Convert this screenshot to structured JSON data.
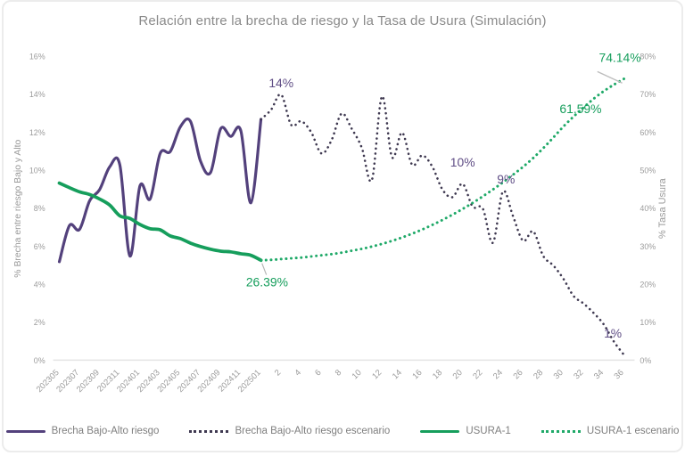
{
  "title": "Relación entre la brecha de riesgo y la Tasa de Usura (Simulación)",
  "chart_data": {
    "type": "line",
    "title": "Relación entre la brecha de riesgo y la Tasa de Usura (Simulación)",
    "left_axis": {
      "label": "% Brecha entre riesgo Bajo y Alto",
      "min": 0,
      "max": 16,
      "ticks": [
        "0%",
        "2%",
        "4%",
        "6%",
        "8%",
        "10%",
        "12%",
        "14%",
        "16%"
      ]
    },
    "right_axis": {
      "label": "% Tasa Usura",
      "min": 0,
      "max": 80,
      "ticks": [
        "0%",
        "10%",
        "20%",
        "30%",
        "40%",
        "50%",
        "60%",
        "70%",
        "80%"
      ]
    },
    "x_axis": {
      "historical_labels": [
        "202305",
        "202307",
        "202309",
        "202311",
        "202401",
        "202403",
        "202405",
        "202407",
        "202409",
        "202411",
        "202501"
      ],
      "scenario_labels": [
        "2",
        "4",
        "6",
        "8",
        "10",
        "12",
        "14",
        "16",
        "18",
        "20",
        "22",
        "24",
        "26",
        "28",
        "30",
        "32",
        "34",
        "36"
      ]
    },
    "series": [
      {
        "name": "Brecha Bajo-Alto riesgo",
        "axis": "left",
        "style": "solid",
        "color": "#53417c",
        "width": 3.2,
        "values": [
          5.2,
          7.1,
          6.9,
          8.4,
          9.0,
          10.2,
          10.3,
          5.5,
          9.2,
          8.5,
          10.9,
          11.0,
          12.3,
          12.6,
          10.5,
          9.9,
          12.2,
          11.8,
          12.1,
          8.3,
          12.7
        ]
      },
      {
        "name": "Brecha Bajo-Alto riesgo escenario",
        "axis": "left",
        "style": "dotted",
        "color": "#3e3850",
        "width": 2.6,
        "values": [
          13.2,
          14.0,
          12.4,
          12.6,
          12.0,
          10.9,
          11.6,
          13.0,
          12.2,
          11.2,
          9.5,
          13.9,
          10.7,
          12.0,
          10.3,
          10.8,
          10.2,
          9.0,
          8.6,
          9.3,
          8.1,
          8.0,
          6.2,
          8.9,
          7.6,
          6.3,
          6.8,
          5.5,
          5.0,
          4.3,
          3.4,
          3.0,
          2.5,
          1.9,
          1.0,
          0.3
        ]
      },
      {
        "name": "USURA-1",
        "axis": "right",
        "style": "solid",
        "color": "#169e5c",
        "width": 3.8,
        "values": [
          46.7,
          45.5,
          44.4,
          43.7,
          42.5,
          40.9,
          38.1,
          37.4,
          35.8,
          34.7,
          34.4,
          32.8,
          32.1,
          30.9,
          30.0,
          29.3,
          28.8,
          28.6,
          28.1,
          27.7,
          26.39
        ]
      },
      {
        "name": "USURA-1 escenario",
        "axis": "right",
        "style": "dotted",
        "color": "#1fa968",
        "width": 3.0,
        "values": [
          26.5,
          26.7,
          26.9,
          27.1,
          27.4,
          27.7,
          28.0,
          28.4,
          28.9,
          29.4,
          30.0,
          30.7,
          31.5,
          32.4,
          33.4,
          34.5,
          35.7,
          37.0,
          38.4,
          39.9,
          41.5,
          43.2,
          45.0,
          46.9,
          48.9,
          51.0,
          53.3,
          55.9,
          58.7,
          61.59,
          64.2,
          66.6,
          68.9,
          70.9,
          72.6,
          74.14
        ]
      }
    ],
    "annotations": [
      {
        "text": "14%",
        "axis": "left",
        "i": 22.0,
        "v": 14.0,
        "dy": -12,
        "color": "#5f4d85",
        "size": 14
      },
      {
        "text": "10%",
        "axis": "left",
        "i": 40.0,
        "v": 10.4,
        "dy": 0,
        "color": "#5f4d85",
        "size": 14
      },
      {
        "text": "9%",
        "axis": "left",
        "i": 44.3,
        "v": 9.5,
        "dy": 0,
        "color": "#5f4d85",
        "size": 14
      },
      {
        "text": "1%",
        "axis": "left",
        "i": 54.9,
        "v": 1.4,
        "dy": 0,
        "color": "#5f4d85",
        "size": 14
      },
      {
        "text": "26.39%",
        "axis": "right",
        "i": 20.6,
        "v": 20.5,
        "dy": 0,
        "color": "#169e5c",
        "size": 14
      },
      {
        "text": "61.59%",
        "axis": "right",
        "i": 51.7,
        "v": 66.0,
        "dy": 0,
        "color": "#169e5c",
        "size": 14
      },
      {
        "text": "74.14%",
        "axis": "right",
        "i": 55.6,
        "v": 79.5,
        "dy": 0,
        "color": "#169e5c",
        "size": 14
      }
    ]
  },
  "legend": {
    "items": [
      {
        "label": "Brecha Bajo-Alto riesgo",
        "style": "solid",
        "color": "#53417c"
      },
      {
        "label": "Brecha Bajo-Alto riesgo escenario",
        "style": "dotted",
        "color": "#3e3850"
      },
      {
        "label": "USURA-1",
        "style": "solid",
        "color": "#169e5c"
      },
      {
        "label": "USURA-1 escenario",
        "style": "dotted",
        "color": "#1fa968"
      }
    ]
  }
}
